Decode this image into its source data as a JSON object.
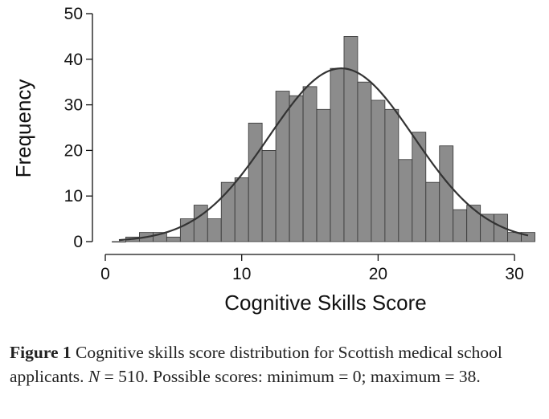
{
  "chart_data": {
    "type": "bar",
    "xlabel": "Cognitive Skills Score",
    "ylabel": "Frequency",
    "xlim": [
      0,
      32
    ],
    "ylim": [
      0,
      50
    ],
    "xticks": [
      0,
      10,
      20,
      30
    ],
    "yticks": [
      0,
      10,
      20,
      30,
      40,
      50
    ],
    "bin_width": 1,
    "bins": [
      {
        "x": 1,
        "count": 0
      },
      {
        "x": 2,
        "count": 1
      },
      {
        "x": 3,
        "count": 2
      },
      {
        "x": 4,
        "count": 2
      },
      {
        "x": 5,
        "count": 1
      },
      {
        "x": 6,
        "count": 5
      },
      {
        "x": 7,
        "count": 8
      },
      {
        "x": 8,
        "count": 5
      },
      {
        "x": 9,
        "count": 13
      },
      {
        "x": 10,
        "count": 14
      },
      {
        "x": 11,
        "count": 26
      },
      {
        "x": 12,
        "count": 20
      },
      {
        "x": 13,
        "count": 33
      },
      {
        "x": 14,
        "count": 32
      },
      {
        "x": 15,
        "count": 34
      },
      {
        "x": 16,
        "count": 29
      },
      {
        "x": 17,
        "count": 38
      },
      {
        "x": 18,
        "count": 45
      },
      {
        "x": 19,
        "count": 35
      },
      {
        "x": 20,
        "count": 31
      },
      {
        "x": 21,
        "count": 29
      },
      {
        "x": 22,
        "count": 18
      },
      {
        "x": 23,
        "count": 24
      },
      {
        "x": 24,
        "count": 13
      },
      {
        "x": 25,
        "count": 21
      },
      {
        "x": 26,
        "count": 7
      },
      {
        "x": 27,
        "count": 8
      },
      {
        "x": 28,
        "count": 6
      },
      {
        "x": 29,
        "count": 6
      },
      {
        "x": 30,
        "count": 2
      },
      {
        "x": 31,
        "count": 2
      }
    ],
    "normal_curve": {
      "mean": 17.3,
      "peak": 38
    },
    "bar_color": "#8c8c8c",
    "bar_edge_color": "#333333",
    "curve_color": "#333333"
  },
  "caption": {
    "label": "Figure 1",
    "text_1": "Cognitive skills score distribution for Scottish medical school applicants.",
    "n_symbol": "N",
    "n_value": " = 510. Possible scores: minimum = 0; maximum = 38."
  }
}
